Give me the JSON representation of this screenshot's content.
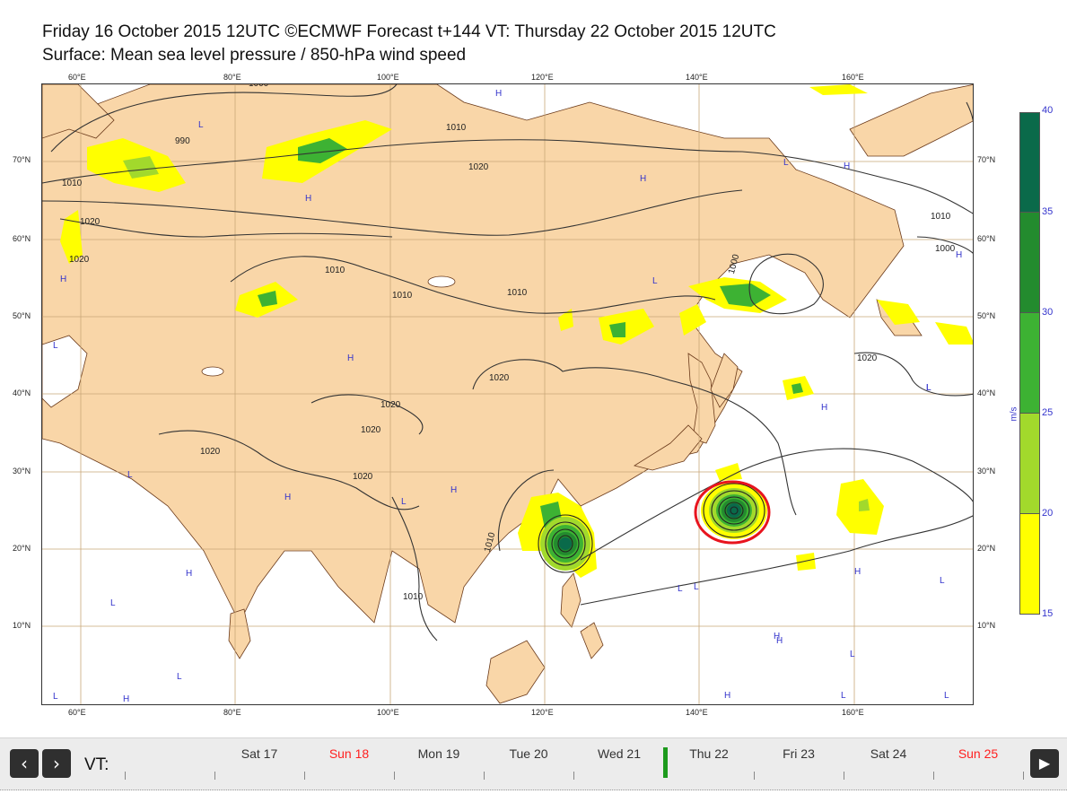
{
  "title_line1": "Friday 16 October 2015 12UTC ©ECMWF Forecast t+144 VT: Thursday 22 October 2015 12UTC",
  "title_line2": "Surface: Mean sea level pressure / 850-hPa wind speed",
  "map": {
    "lon_labels": [
      "60°E",
      "80°E",
      "100°E",
      "120°E",
      "140°E",
      "160°E"
    ],
    "lat_labels": [
      "70°N",
      "60°N",
      "50°N",
      "40°N",
      "30°N",
      "20°N",
      "10°N"
    ],
    "isobar_labels": [
      "1000",
      "990",
      "1010",
      "1010",
      "1020",
      "1020",
      "1010",
      "1010",
      "1010",
      "1020",
      "1020",
      "1020",
      "1020",
      "1020",
      "1010",
      "1010",
      "1000",
      "1000",
      "1020",
      "1010",
      "1020"
    ],
    "pressure_centers": [
      "H",
      "L",
      "H",
      "H",
      "L",
      "L",
      "H",
      "L",
      "H",
      "H",
      "L",
      "L",
      "H",
      "L",
      "H",
      "L",
      "L",
      "H",
      "H",
      "L",
      "L",
      "H",
      "L",
      "H",
      "L",
      "L",
      "H",
      "L",
      "H",
      "H",
      "L",
      "H",
      "L"
    ],
    "highlight_color": "#e8141e",
    "land_color": "#f9d6a8"
  },
  "colorbar": {
    "ticks": [
      "40",
      "35",
      "30",
      "25",
      "20",
      "15"
    ],
    "unit": "m/s",
    "colors": [
      "#0a6a4a",
      "#238b2e",
      "#3db233",
      "#a2d92c",
      "#ffff00"
    ]
  },
  "nav": {
    "prev_icon": "‹",
    "next_icon": "›",
    "play_icon": "▶",
    "vt_label": "VT:",
    "days": [
      {
        "label": "Sat 17",
        "red": false
      },
      {
        "label": "Sun 18",
        "red": true
      },
      {
        "label": "Mon 19",
        "red": false
      },
      {
        "label": "Tue 20",
        "red": false
      },
      {
        "label": "Wed 21",
        "red": false
      },
      {
        "label": "Thu 22",
        "red": false
      },
      {
        "label": "Fri 23",
        "red": false
      },
      {
        "label": "Sat 24",
        "red": false
      },
      {
        "label": "Sun 25",
        "red": true
      }
    ]
  }
}
